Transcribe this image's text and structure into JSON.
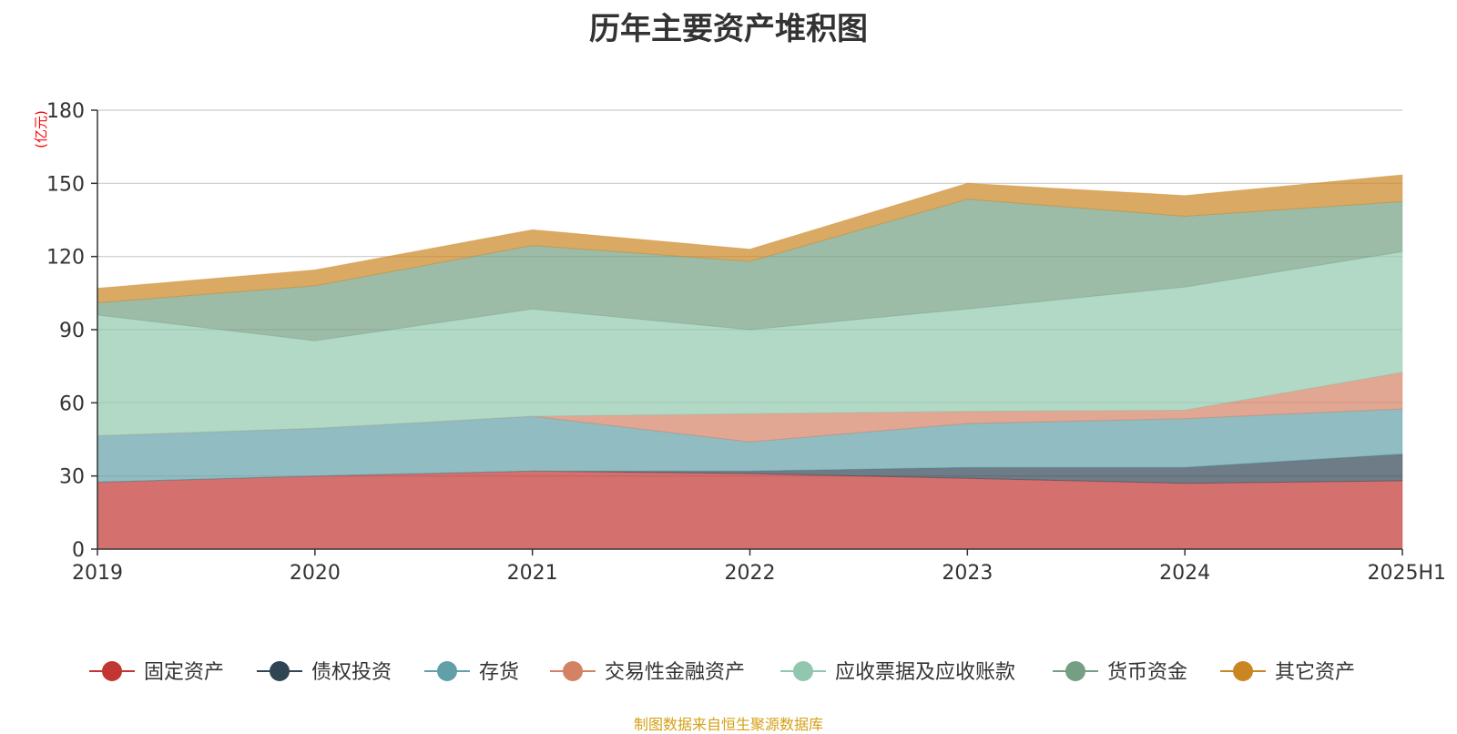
{
  "chart_data": {
    "type": "area",
    "stacked": true,
    "title": "历年主要资产堆积图",
    "ylabel": "(亿元)",
    "xlabel": "",
    "categories": [
      "2019",
      "2020",
      "2021",
      "2022",
      "2023",
      "2024",
      "2025H1"
    ],
    "ylim": [
      0,
      180
    ],
    "yticks": [
      0,
      30,
      60,
      90,
      120,
      150,
      180
    ],
    "grid": true,
    "legend_position": "bottom",
    "series": [
      {
        "name": "固定资产",
        "color": "#c23531",
        "values": [
          27.5,
          30,
          32,
          31,
          29,
          27,
          28
        ]
      },
      {
        "name": "债权投资",
        "color": "#2f4554",
        "values": [
          0,
          0,
          0,
          1,
          4.5,
          6.5,
          11
        ]
      },
      {
        "name": "存货",
        "color": "#61a0a8",
        "values": [
          19,
          19.5,
          22.5,
          12,
          18,
          20,
          18.5
        ]
      },
      {
        "name": "交易性金融资产",
        "color": "#d48265",
        "values": [
          0,
          0,
          0,
          11.5,
          5,
          3.5,
          15
        ]
      },
      {
        "name": "应收票据及应收账款",
        "color": "#91c7ae",
        "values": [
          49.5,
          36,
          44,
          34.5,
          42,
          50.5,
          49.5
        ]
      },
      {
        "name": "货币资金",
        "color": "#749f83",
        "values": [
          5,
          22.5,
          26,
          28,
          45,
          29,
          20.5
        ]
      },
      {
        "name": "其它资产",
        "color": "#ca8622",
        "values": [
          6,
          6.5,
          6.5,
          5,
          6.5,
          8.5,
          11
        ]
      }
    ]
  },
  "source_note": "制图数据来自恒生聚源数据库"
}
